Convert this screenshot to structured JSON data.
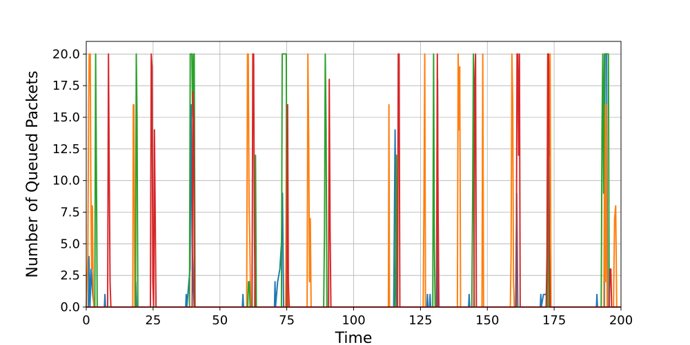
{
  "chart_data": {
    "type": "line",
    "title": "",
    "xlabel": "Time",
    "ylabel": "Number of Queued Packets",
    "xlim": [
      0,
      200
    ],
    "ylim": [
      0,
      21
    ],
    "xticks": [
      0,
      25,
      50,
      75,
      100,
      125,
      150,
      175,
      200
    ],
    "xtick_labels": [
      "0",
      "25",
      "50",
      "75",
      "100",
      "125",
      "150",
      "175",
      "200"
    ],
    "yticks": [
      0,
      2.5,
      5,
      7.5,
      10,
      12.5,
      15,
      17.5,
      20
    ],
    "ytick_labels": [
      "0.0",
      "2.5",
      "5.0",
      "7.5",
      "10.0",
      "12.5",
      "15.0",
      "17.5",
      "20.0"
    ],
    "grid": true,
    "legend": "none",
    "series": [
      {
        "color": "#1f77b4",
        "x": [
          0,
          0.8,
          1.0,
          1.4,
          1.8,
          2.4,
          3.0,
          6.8,
          7.0,
          7.2,
          8.0,
          18.2,
          18.5,
          18.8,
          37.2,
          37.4,
          37.6,
          38.0,
          38.4,
          38.8,
          39.2,
          39.6,
          40.0,
          40.4,
          58.4,
          58.6,
          58.8,
          70.4,
          70.6,
          70.8,
          71.6,
          72.4,
          73.0,
          73.4,
          73.8,
          115.0,
          115.5,
          116.0,
          127.4,
          127.6,
          127.8,
          128.4,
          128.6,
          128.8,
          131.2,
          131.4,
          131.6,
          143.0,
          143.2,
          143.4,
          160.6,
          161.0,
          161.4,
          169.8,
          170.0,
          170.2,
          171.0,
          171.4,
          172.0,
          172.6,
          173.0,
          190.8,
          191.0,
          191.2,
          193.8,
          194.0,
          194.6,
          195.0,
          200
        ],
        "y": [
          0,
          0,
          4,
          0,
          3,
          1,
          0,
          0,
          1,
          0,
          0,
          0,
          2,
          0,
          0,
          1,
          0,
          1,
          2,
          3,
          16,
          5,
          2,
          0,
          0,
          1,
          0,
          0,
          2,
          0,
          2,
          3,
          5,
          9,
          0,
          0,
          14,
          0,
          0,
          1,
          0,
          0,
          1,
          0,
          0,
          18,
          0,
          0,
          1,
          0,
          0,
          9,
          0,
          0,
          1,
          0,
          1,
          1,
          1,
          2,
          0,
          0,
          1,
          0,
          0,
          20,
          20,
          0,
          0
        ]
      },
      {
        "color": "#ff7f0e",
        "x": [
          0,
          0.6,
          0.9,
          1.1,
          1.3,
          1.5,
          1.7,
          2.0,
          2.3,
          2.6,
          2.9,
          3.2,
          17.4,
          17.6,
          17.8,
          18.0,
          18.2,
          60.0,
          60.3,
          60.6,
          60.9,
          61.2,
          61.5,
          74.6,
          74.9,
          75.2,
          75.5,
          82.6,
          82.9,
          83.2,
          83.5,
          83.8,
          84.1,
          113.0,
          113.2,
          113.4,
          126.0,
          126.3,
          126.6,
          126.9,
          138.8,
          139.1,
          139.4,
          139.7,
          140.0,
          148.0,
          148.3,
          148.6,
          158.6,
          158.9,
          159.2,
          159.5,
          159.8,
          160.1,
          172.6,
          172.9,
          173.2,
          173.5,
          173.8,
          193.6,
          193.9,
          194.2,
          194.5,
          194.8,
          195.1,
          197.2,
          197.6,
          198.0,
          198.4,
          200
        ],
        "y": [
          0,
          4,
          16,
          20,
          20,
          20,
          10,
          3,
          8,
          1,
          0,
          0,
          0,
          16,
          16,
          8,
          0,
          0,
          20,
          20,
          8,
          5,
          0,
          0,
          16,
          12,
          0,
          0,
          20,
          13,
          2,
          7,
          0,
          0,
          16,
          0,
          0,
          8,
          20,
          0,
          0,
          20,
          14,
          19,
          0,
          0,
          20,
          0,
          0,
          4,
          20,
          16,
          2,
          0,
          0,
          20,
          12,
          20,
          0,
          0,
          16,
          2,
          16,
          0,
          0,
          0,
          7,
          8,
          0,
          0
        ]
      },
      {
        "color": "#2ca02c",
        "x": [
          0,
          3.2,
          3.5,
          3.8,
          4.1,
          18.4,
          18.7,
          19.0,
          19.3,
          38.6,
          38.9,
          39.2,
          39.5,
          39.8,
          40.1,
          40.4,
          40.7,
          60.4,
          60.7,
          61.0,
          61.3,
          63.0,
          63.3,
          63.6,
          73.0,
          73.3,
          73.6,
          73.9,
          74.2,
          74.5,
          74.8,
          75.1,
          88.8,
          89.1,
          89.4,
          89.7,
          90.0,
          115.4,
          115.7,
          116.0,
          116.3,
          129.6,
          129.9,
          130.2,
          130.5,
          144.2,
          144.5,
          144.8,
          145.1,
          172.4,
          172.7,
          173.0,
          173.3,
          192.6,
          192.9,
          193.2,
          193.5,
          193.8,
          194.1,
          194.4,
          194.7,
          195.0,
          195.3,
          195.6,
          200
        ],
        "y": [
          0,
          0,
          20,
          11,
          0,
          0,
          20,
          15,
          0,
          0,
          20,
          20,
          20,
          15,
          20,
          20,
          0,
          0,
          2,
          2,
          0,
          0,
          12,
          0,
          0,
          20,
          20,
          20,
          20,
          20,
          20,
          0,
          0,
          6,
          20,
          14,
          0,
          0,
          4,
          12,
          0,
          0,
          20,
          5,
          0,
          0,
          8,
          20,
          0,
          0,
          20,
          2,
          0,
          0,
          14,
          20,
          9,
          20,
          20,
          20,
          20,
          20,
          20,
          0,
          0
        ]
      },
      {
        "color": "#d62728",
        "x": [
          0,
          8.0,
          8.3,
          8.6,
          8.9,
          9.2,
          24.0,
          24.3,
          24.6,
          24.9,
          25.2,
          25.5,
          25.8,
          26.1,
          39.6,
          39.9,
          40.2,
          40.5,
          62.0,
          62.3,
          62.6,
          62.9,
          63.2,
          75.0,
          75.3,
          75.6,
          75.9,
          90.6,
          90.9,
          91.2,
          91.5,
          116.4,
          116.7,
          117.0,
          117.3,
          131.0,
          131.3,
          131.6,
          131.9,
          145.0,
          145.3,
          145.6,
          145.9,
          160.8,
          161.1,
          161.4,
          161.7,
          162.0,
          162.3,
          172.0,
          172.3,
          172.6,
          172.9,
          173.2,
          173.5,
          195.6,
          195.9,
          196.2,
          196.5,
          196.8,
          200
        ],
        "y": [
          0,
          0,
          20,
          11,
          2,
          0,
          0,
          20,
          19,
          2,
          0,
          14,
          7,
          0,
          0,
          17,
          15,
          0,
          0,
          20,
          20,
          6,
          0,
          0,
          16,
          2,
          0,
          0,
          18,
          6,
          0,
          0,
          20,
          20,
          0,
          0,
          20,
          8,
          0,
          0,
          18,
          20,
          0,
          0,
          20,
          20,
          12,
          20,
          0,
          0,
          4,
          20,
          20,
          5,
          0,
          0,
          3,
          3,
          0,
          0,
          0
        ]
      }
    ]
  }
}
